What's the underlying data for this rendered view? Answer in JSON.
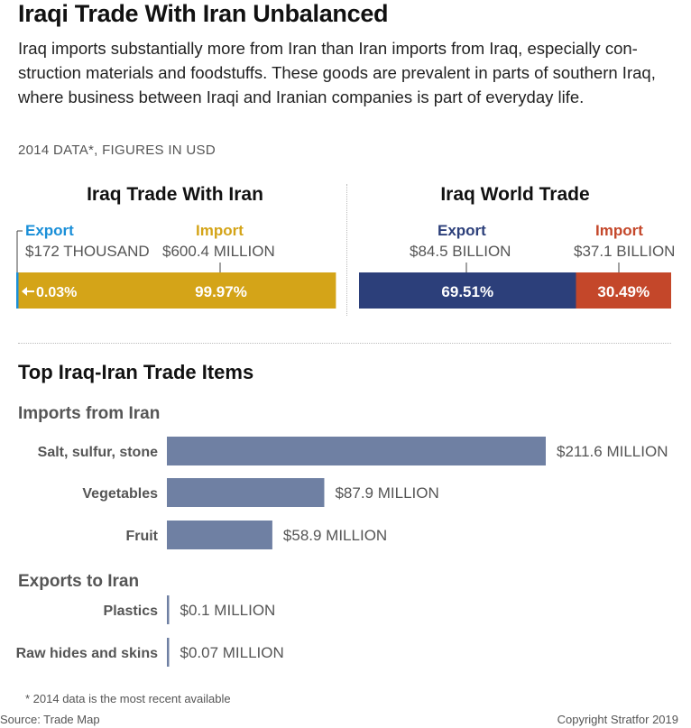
{
  "title": "Iraqi Trade With Iran Unbalanced",
  "subtitle": "Iraq imports substantially more from Iran than Iran imports from Iraq, especially con-struction materials and foodstuffs. These goods are prevalent in parts of southern Iraq, where business between Iraqi and Iranian companies is part of everyday life.",
  "data_note": "2014 DATA*, FIGURES IN USD",
  "colors": {
    "export_iran": "#1a8fd8",
    "import_iran": "#d4a418",
    "export_world": "#2c3f7a",
    "import_world": "#c4472a",
    "items_bar": "#6f80a3"
  },
  "chart_data": [
    {
      "type": "bar",
      "title": "Iraq Trade With Iran",
      "series": [
        {
          "name": "Export",
          "amount": "$172 THOUSAND",
          "share_label": "0.03%",
          "share": 0.03
        },
        {
          "name": "Import",
          "amount": "$600.4 MILLION",
          "share_label": "99.97%",
          "share": 99.97
        }
      ]
    },
    {
      "type": "bar",
      "title": "Iraq World Trade",
      "series": [
        {
          "name": "Export",
          "amount": "$84.5 BILLION",
          "share_label": "69.51%",
          "share": 69.51
        },
        {
          "name": "Import",
          "amount": "$37.1 BILLION",
          "share_label": "30.49%",
          "share": 30.49
        }
      ]
    },
    {
      "type": "bar",
      "title": "Top Iraq-Iran Trade Items",
      "groups": [
        {
          "name": "Imports from Iran",
          "categories": [
            "Salt, sulfur, stone",
            "Vegetables",
            "Fruit"
          ],
          "values": [
            211.6,
            87.9,
            58.9
          ],
          "value_labels": [
            "$211.6 MILLION",
            "$87.9 MILLION",
            "$58.9 MILLION"
          ]
        },
        {
          "name": "Exports to Iran",
          "categories": [
            "Plastics",
            "Raw hides and skins"
          ],
          "values": [
            0.1,
            0.07
          ],
          "value_labels": [
            "$0.1 MILLION",
            "$0.07 MILLION"
          ]
        }
      ],
      "unit": "million USD"
    }
  ],
  "footnote": "* 2014 data is the most recent available",
  "source": "Source: Trade Map",
  "copyright": "Copyright Stratfor 2019"
}
